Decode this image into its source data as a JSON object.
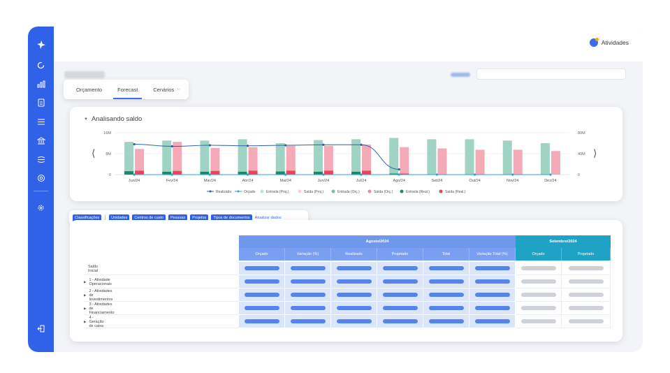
{
  "sidebar": {
    "icons": [
      "logo-icon",
      "refresh-icon",
      "bar-chart-icon",
      "document-icon",
      "list-icon",
      "bank-icon",
      "exchange-icon",
      "settings-group-icon",
      "gear-icon",
      "logout-icon"
    ]
  },
  "topbar": {
    "activities_label": "Atividades"
  },
  "tabs": [
    {
      "label": "Orçamento"
    },
    {
      "label": "Forecast"
    },
    {
      "label": "Cenários"
    }
  ],
  "chart_section": {
    "title": "Analisando saldo"
  },
  "chart_data": {
    "type": "bar",
    "categories": [
      "Jun/24",
      "Fev/24",
      "Mar/24",
      "Abr/24",
      "Mai/24",
      "Jun/24",
      "Jul/24",
      "Ago/24",
      "Set/24",
      "Out/24",
      "Nov/24",
      "Dez/24"
    ],
    "y_left_ticks": [
      "16M",
      "8M",
      "0"
    ],
    "y_right_ticks": [
      "80M",
      "40M",
      "0"
    ],
    "ylim_left": [
      0,
      16
    ],
    "ylim_right": [
      0,
      80
    ],
    "series": [
      {
        "name": "Entrada (Proj.)",
        "color": "#9fd3c4",
        "values": [
          12.5,
          13,
          13,
          13.5,
          12,
          13.2,
          13.5,
          14,
          13.5,
          13.5,
          13,
          12
        ]
      },
      {
        "name": "Saída (Proj.)",
        "color": "#f5aab8",
        "values": [
          9.8,
          12.5,
          10.2,
          10.5,
          11,
          11,
          11.5,
          10.5,
          10,
          9.5,
          9.5,
          9
        ]
      },
      {
        "name": "Entrada (Real.)",
        "color": "#1a8a6e",
        "values": [
          1.3,
          1.1,
          1.1,
          1.1,
          1.2,
          1.1,
          1.1,
          0.4,
          0,
          0,
          0,
          0
        ]
      },
      {
        "name": "Saída (Real.)",
        "color": "#e8445e",
        "values": [
          1.5,
          1.4,
          1.4,
          1.5,
          1.5,
          1.5,
          1.5,
          0.4,
          0,
          0,
          0,
          0
        ]
      },
      {
        "name": "Realizado",
        "color": "#2f5fb3",
        "type": "line",
        "values": [
          58,
          54,
          56,
          55,
          56,
          57,
          57,
          10,
          null,
          null,
          null,
          null
        ]
      },
      {
        "name": "Orçado",
        "color": "#2aa7c8",
        "type": "line",
        "values": [
          0,
          0,
          0,
          0,
          0,
          0,
          0,
          0,
          0,
          0,
          0,
          0
        ]
      }
    ],
    "legend": [
      {
        "name": "Realizado",
        "color": "#2f5fb3",
        "shape": "line"
      },
      {
        "name": "Orçado",
        "color": "#2aa7c8",
        "shape": "line"
      },
      {
        "name": "Entrada (Proj.)",
        "color": "#bfe3d8",
        "shape": "dot"
      },
      {
        "name": "Saída (Proj.)",
        "color": "#fad0d8",
        "shape": "dot"
      },
      {
        "name": "Entrada (Orç.)",
        "color": "#6fc3a8",
        "shape": "dot"
      },
      {
        "name": "Saída (Orç.)",
        "color": "#f08ca0",
        "shape": "dot"
      },
      {
        "name": "Entrada (Real.)",
        "color": "#1a8a6e",
        "shape": "dot"
      },
      {
        "name": "Saída (Real.)",
        "color": "#e8445e",
        "shape": "dot"
      }
    ],
    "legend_position": "bottom",
    "grid": true
  },
  "filters": {
    "chips": [
      "Classificações",
      "Unidades",
      "Centros de custo",
      "Pessoas",
      "Projetos",
      "Tipos de documentos"
    ],
    "link": "Atualizar dados"
  },
  "table": {
    "groups": [
      {
        "label": "Agosto/2024",
        "columns": [
          "Orçado",
          "Variação (%)",
          "Realizado",
          "Projetado",
          "Total",
          "Variação Total (%)"
        ]
      },
      {
        "label": "Setembro/2024",
        "columns": [
          "Orçado",
          "Projetado"
        ]
      }
    ],
    "rows": [
      {
        "label": "Saldo Inicial",
        "expandable": false
      },
      {
        "label": "1 - Atividade Operacionais",
        "expandable": true
      },
      {
        "label": "2 - Atividades de Investimentos",
        "expandable": true
      },
      {
        "label": "3 - Atividades de Financiamento",
        "expandable": true
      },
      {
        "label": "4 - Geração de caixa",
        "expandable": true
      }
    ]
  }
}
